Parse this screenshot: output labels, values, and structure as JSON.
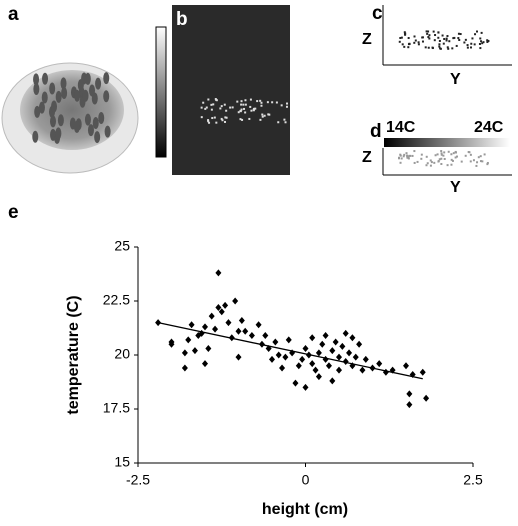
{
  "panels": {
    "a": {
      "label": "a"
    },
    "b": {
      "label": "b"
    },
    "c": {
      "label": "c",
      "z_label": "Z",
      "y_label": "Y"
    },
    "d": {
      "label": "d",
      "z_label": "Z",
      "y_label": "Y",
      "scale_min": "14C",
      "scale_max": "24C"
    },
    "e": {
      "label": "e"
    }
  },
  "chart_data": {
    "type": "scatter",
    "xlabel": "height (cm)",
    "ylabel": "temperature (C)",
    "color": "#000000",
    "xlim": [
      -2.5,
      2.5
    ],
    "xticks": [
      -2.5,
      0,
      2.5
    ],
    "ylim": [
      15,
      25
    ],
    "yticks": [
      15,
      17.5,
      20,
      22.5,
      25
    ],
    "x": [
      -2.2,
      -2.0,
      -2.0,
      -1.8,
      -1.8,
      -1.75,
      -1.7,
      -1.65,
      -1.6,
      -1.55,
      -1.5,
      -1.5,
      -1.45,
      -1.4,
      -1.35,
      -1.3,
      -1.3,
      -1.25,
      -1.2,
      -1.15,
      -1.1,
      -1.05,
      -1.0,
      -1.0,
      -0.95,
      -0.9,
      -0.8,
      -0.7,
      -0.65,
      -0.6,
      -0.55,
      -0.5,
      -0.45,
      -0.4,
      -0.35,
      -0.3,
      -0.25,
      -0.2,
      -0.15,
      -0.1,
      -0.05,
      0.0,
      0.0,
      0.05,
      0.1,
      0.1,
      0.15,
      0.2,
      0.2,
      0.25,
      0.3,
      0.3,
      0.35,
      0.4,
      0.4,
      0.45,
      0.5,
      0.5,
      0.55,
      0.6,
      0.6,
      0.65,
      0.7,
      0.7,
      0.75,
      0.8,
      0.85,
      0.9,
      1.0,
      1.1,
      1.2,
      1.3,
      1.5,
      1.55,
      1.55,
      1.6,
      1.75,
      1.8
    ],
    "y": [
      21.5,
      20.6,
      20.5,
      19.4,
      20.1,
      20.7,
      21.4,
      20.2,
      20.9,
      21.0,
      19.6,
      21.3,
      20.3,
      21.8,
      21.2,
      23.8,
      22.2,
      22.0,
      22.3,
      21.5,
      20.8,
      22.5,
      21.1,
      19.9,
      21.6,
      21.1,
      20.9,
      21.4,
      20.5,
      20.9,
      20.3,
      19.8,
      20.6,
      20.0,
      19.4,
      19.9,
      20.7,
      20.1,
      18.7,
      19.5,
      19.8,
      20.3,
      18.5,
      20.0,
      19.6,
      20.8,
      19.3,
      20.1,
      19.0,
      20.5,
      19.8,
      20.9,
      19.5,
      20.2,
      18.8,
      20.6,
      19.9,
      19.3,
      20.4,
      21.0,
      19.7,
      20.1,
      20.8,
      19.5,
      19.9,
      20.5,
      19.3,
      19.8,
      19.4,
      19.6,
      19.2,
      19.3,
      19.5,
      18.2,
      17.7,
      19.1,
      19.2,
      18.0
    ],
    "trendline": {
      "x": [
        -2.2,
        1.75
      ],
      "y": [
        21.5,
        18.9
      ]
    }
  }
}
